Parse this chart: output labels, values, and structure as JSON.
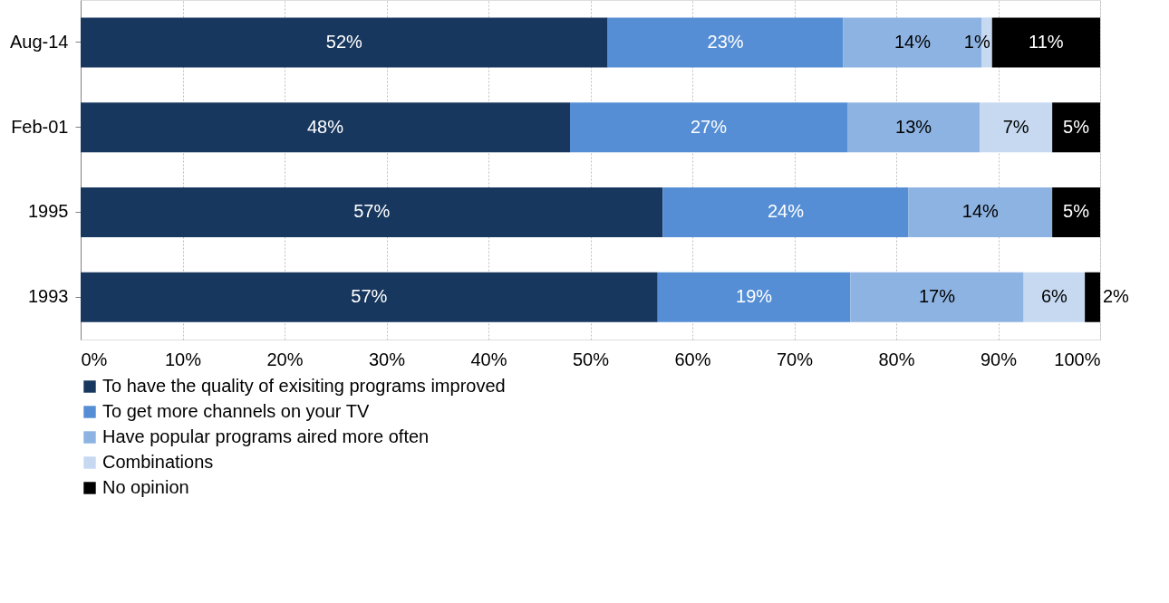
{
  "chart_data": {
    "type": "bar",
    "orientation": "horizontal",
    "stacked": true,
    "categories": [
      "Aug-14",
      "Feb-01",
      "1995",
      "1993"
    ],
    "series": [
      {
        "name": "To have the quality of exisiting programs improved",
        "color": "#17375e",
        "values": [
          51.7,
          48.0,
          57.1,
          56.6
        ],
        "value_labels": [
          "52%",
          "48%",
          "57%",
          "57%"
        ]
      },
      {
        "name": "To get more channels on your TV",
        "color": "#558ed5",
        "values": [
          23.1,
          27.2,
          24.1,
          18.9
        ],
        "value_labels": [
          "23%",
          "27%",
          "24%",
          "19%"
        ]
      },
      {
        "name": "Have popular programs aired more often",
        "color": "#8db3e2",
        "values": [
          13.6,
          13.0,
          14.1,
          17.0
        ],
        "value_labels": [
          "14%",
          "13%",
          "14%",
          "17%"
        ]
      },
      {
        "name": "Combinations",
        "color": "#c6d9f1",
        "values": [
          1.0,
          7.1,
          null,
          6.0
        ],
        "value_labels": [
          "1%",
          "7%",
          null,
          "6%"
        ]
      },
      {
        "name": "No opinion",
        "color": "#000000",
        "values": [
          10.6,
          4.7,
          4.7,
          1.5
        ],
        "value_labels": [
          "11%",
          "5%",
          "5%",
          "2%"
        ]
      }
    ],
    "xlim": [
      0,
      100
    ],
    "xticks": [
      {
        "value": 0,
        "label": "0%"
      },
      {
        "value": 10,
        "label": "10%"
      },
      {
        "value": 20,
        "label": "20%"
      },
      {
        "value": 30,
        "label": "30%"
      },
      {
        "value": 40,
        "label": "40%"
      },
      {
        "value": 50,
        "label": "50%"
      },
      {
        "value": 60,
        "label": "60%"
      },
      {
        "value": 70,
        "label": "70%"
      },
      {
        "value": 80,
        "label": "80%"
      },
      {
        "value": 90,
        "label": "90%"
      },
      {
        "value": 100,
        "label": "100%"
      }
    ],
    "grid": "x",
    "legend": "bottom"
  }
}
